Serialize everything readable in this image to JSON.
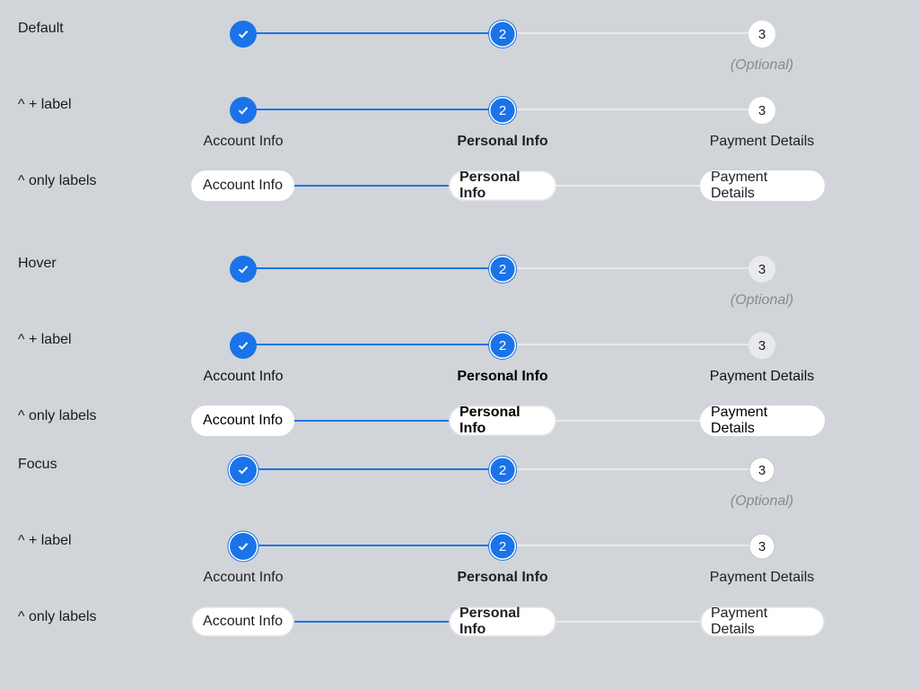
{
  "sections": [
    {
      "id": "default",
      "labels": {
        "icons": "Default",
        "icons_label": "^ + label",
        "only_labels": "^ only labels"
      },
      "steps": [
        {
          "text": "Account Info",
          "state": "done"
        },
        {
          "text": "Personal Info",
          "number": "2",
          "state": "current"
        },
        {
          "text": "Payment Details",
          "number": "3",
          "state": "todo",
          "optional": "(Optional)"
        }
      ]
    },
    {
      "id": "hover",
      "labels": {
        "icons": "Hover",
        "icons_label": "^ + label",
        "only_labels": "^ only labels"
      },
      "steps": [
        {
          "text": "Account Info",
          "state": "done"
        },
        {
          "text": "Personal Info",
          "number": "2",
          "state": "current"
        },
        {
          "text": "Payment Details",
          "number": "3",
          "state": "todo",
          "optional": "(Optional)"
        }
      ]
    },
    {
      "id": "focus",
      "labels": {
        "icons": "Focus",
        "icons_label": "^ + label",
        "only_labels": "^ only labels"
      },
      "steps": [
        {
          "text": "Account Info",
          "state": "done"
        },
        {
          "text": "Personal Info",
          "number": "2",
          "state": "current"
        },
        {
          "text": "Payment Details",
          "number": "3",
          "state": "todo",
          "optional": "(Optional)"
        }
      ]
    }
  ],
  "colors": {
    "accent": "#1a73e8",
    "background": "#d1d4d8",
    "track": "#e8eaed",
    "optional_text": "#8a8a8a"
  },
  "icons": {
    "done": "check-icon"
  }
}
